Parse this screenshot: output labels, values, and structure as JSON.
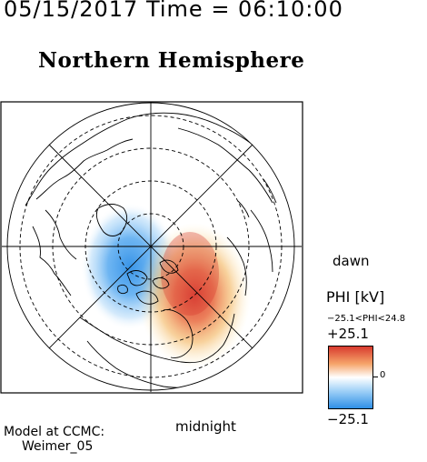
{
  "timestamp": "05/15/2017 Time = 06:10:00",
  "hemisphere_title": "Northern Hemisphere",
  "orientation": {
    "right_label": "dawn",
    "bottom_label": "midnight"
  },
  "colorbar": {
    "title": "PHI [kV]",
    "range_label": "−25.1<PHI<24.8",
    "max_label": "+25.1",
    "min_label": "−25.1",
    "zero_label": "0",
    "colors": {
      "positive": "#d83a2e",
      "neutral": "#ffffff",
      "negative": "#2f8fe6"
    }
  },
  "credit": {
    "line1": "Model at CCMC:",
    "line2": "Weimer_05"
  }
}
